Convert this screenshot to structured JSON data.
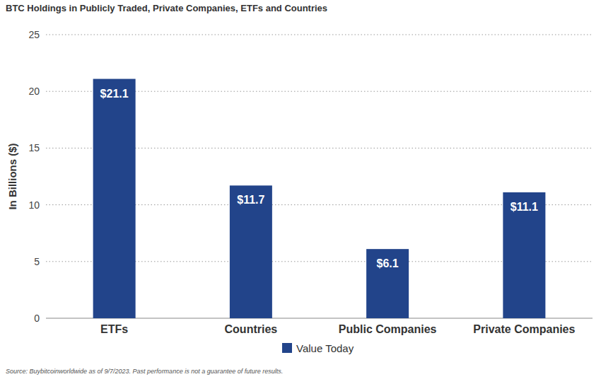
{
  "chart_data": {
    "type": "bar",
    "title": "BTC Holdings in Publicly Traded, Private Companies, ETFs and Countries",
    "y_label": "In Billions ($)",
    "categories": [
      "ETFs",
      "Countries",
      "Public Companies",
      "Private Companies"
    ],
    "series": [
      {
        "name": "Value Today",
        "color": "#22448a",
        "values": [
          21.1,
          11.7,
          6.1,
          11.1
        ],
        "value_labels": [
          "$21.1",
          "$11.7",
          "$6.1",
          "$11.1"
        ]
      }
    ],
    "ylim": [
      0,
      25
    ],
    "yticks": [
      0,
      5,
      10,
      15,
      20,
      25
    ],
    "grid": true,
    "legend": "bottom",
    "data_labels": true,
    "annotations": [
      "Source: Buybitcoinworldwide as of 9/7/2023. Past performance is not a guarantee of future results."
    ]
  }
}
